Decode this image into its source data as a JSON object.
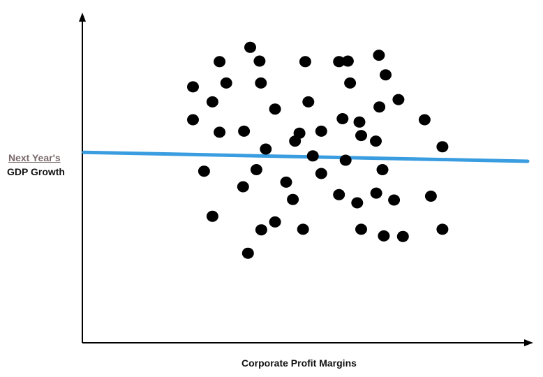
{
  "chart_data": {
    "type": "scatter",
    "title": "",
    "xlabel": "Corporate Profit Margins",
    "ylabel_lines": [
      "Next Year's",
      "GDP Growth"
    ],
    "xlim": [
      0,
      100
    ],
    "ylim": [
      0,
      100
    ],
    "ticks": "none",
    "grid": false,
    "legend": "none",
    "colors": {
      "points": "#000000",
      "trend": "#3a9de0",
      "axes": "#000000"
    },
    "points": [
      {
        "x": 37.5,
        "y": 99.5
      },
      {
        "x": 30.6,
        "y": 93.9
      },
      {
        "x": 39.6,
        "y": 94.1
      },
      {
        "x": 49.9,
        "y": 93.9
      },
      {
        "x": 57.5,
        "y": 93.9
      },
      {
        "x": 59.5,
        "y": 94.1
      },
      {
        "x": 66.5,
        "y": 96.4
      },
      {
        "x": 24.6,
        "y": 84.0
      },
      {
        "x": 32.1,
        "y": 85.5
      },
      {
        "x": 39.9,
        "y": 85.5
      },
      {
        "x": 60.0,
        "y": 85.5
      },
      {
        "x": 68.0,
        "y": 88.7
      },
      {
        "x": 29.0,
        "y": 78.1
      },
      {
        "x": 43.1,
        "y": 75.3
      },
      {
        "x": 50.6,
        "y": 78.1
      },
      {
        "x": 66.6,
        "y": 76.1
      },
      {
        "x": 70.9,
        "y": 79.0
      },
      {
        "x": 24.6,
        "y": 71.1
      },
      {
        "x": 58.3,
        "y": 71.5
      },
      {
        "x": 62.1,
        "y": 70.2
      },
      {
        "x": 76.8,
        "y": 71.1
      },
      {
        "x": 30.6,
        "y": 66.2
      },
      {
        "x": 36.1,
        "y": 66.6
      },
      {
        "x": 48.6,
        "y": 65.8
      },
      {
        "x": 53.5,
        "y": 66.6
      },
      {
        "x": 62.5,
        "y": 64.9
      },
      {
        "x": 47.6,
        "y": 62.7
      },
      {
        "x": 65.8,
        "y": 62.7
      },
      {
        "x": 41.0,
        "y": 59.6
      },
      {
        "x": 51.6,
        "y": 56.9
      },
      {
        "x": 80.8,
        "y": 60.5
      },
      {
        "x": 59.0,
        "y": 55.2
      },
      {
        "x": 27.1,
        "y": 50.9
      },
      {
        "x": 38.9,
        "y": 51.5
      },
      {
        "x": 53.5,
        "y": 50.0
      },
      {
        "x": 67.3,
        "y": 51.5
      },
      {
        "x": 45.6,
        "y": 46.6
      },
      {
        "x": 35.9,
        "y": 44.8
      },
      {
        "x": 57.5,
        "y": 41.7
      },
      {
        "x": 65.9,
        "y": 42.3
      },
      {
        "x": 47.1,
        "y": 39.8
      },
      {
        "x": 61.6,
        "y": 38.5
      },
      {
        "x": 69.9,
        "y": 39.6
      },
      {
        "x": 78.2,
        "y": 41.1
      },
      {
        "x": 29.0,
        "y": 33.2
      },
      {
        "x": 43.1,
        "y": 31.0
      },
      {
        "x": 40.0,
        "y": 27.9
      },
      {
        "x": 49.4,
        "y": 28.1
      },
      {
        "x": 62.5,
        "y": 28.1
      },
      {
        "x": 67.6,
        "y": 25.5
      },
      {
        "x": 71.9,
        "y": 25.3
      },
      {
        "x": 80.8,
        "y": 28.1
      },
      {
        "x": 37.0,
        "y": 18.7
      }
    ],
    "trend_line": {
      "x": [
        0,
        100
      ],
      "y": [
        58.3,
        54.8
      ]
    }
  }
}
